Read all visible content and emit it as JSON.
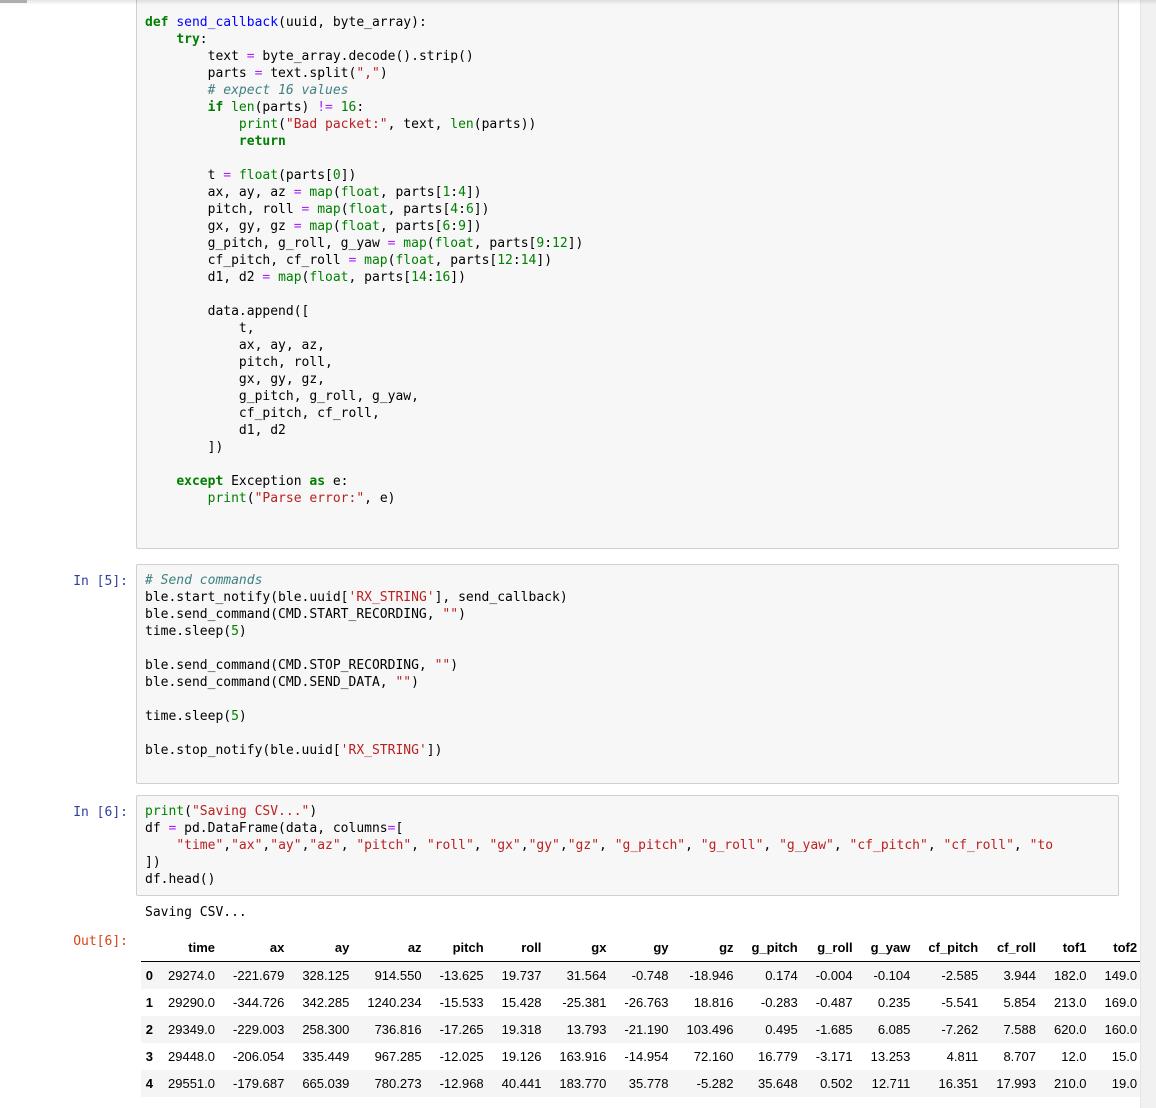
{
  "colors": {
    "in_prompt": "#303f9f",
    "out_prompt": "#d84315",
    "cell_background": "#f7f7f7",
    "cell_border": "#cfcfcf",
    "keyword_green": "#008000",
    "function_blue": "#0000ff",
    "operator_purple": "#aa22ff",
    "string_red": "#ba2121",
    "comment_teal": "#408080",
    "row_stripe": "#f5f5f5"
  },
  "prompts": {
    "in5": "In [5]:",
    "in6": "In [6]:",
    "out6": "Out[6]:"
  },
  "stdout_text": "Saving CSV...",
  "cells": [
    {
      "lines": [
        [
          [
            "k",
            "def"
          ],
          [
            "t",
            " "
          ],
          [
            "f",
            "send_callback"
          ],
          [
            "t",
            "(uuid, byte_array):"
          ]
        ],
        [
          [
            "t",
            "    "
          ],
          [
            "k",
            "try"
          ],
          [
            "t",
            ":"
          ]
        ],
        [
          [
            "t",
            "        text "
          ],
          [
            "o",
            "="
          ],
          [
            "t",
            " byte_array.decode().strip()"
          ]
        ],
        [
          [
            "t",
            "        parts "
          ],
          [
            "o",
            "="
          ],
          [
            "t",
            " text.split("
          ],
          [
            "s",
            "\",\""
          ],
          [
            "t",
            ")"
          ]
        ],
        [
          [
            "t",
            "        "
          ],
          [
            "c",
            "# expect 16 values"
          ]
        ],
        [
          [
            "t",
            "        "
          ],
          [
            "k",
            "if"
          ],
          [
            "t",
            " "
          ],
          [
            "b",
            "len"
          ],
          [
            "t",
            "(parts) "
          ],
          [
            "o",
            "!="
          ],
          [
            "t",
            " "
          ],
          [
            "n",
            "16"
          ],
          [
            "t",
            ":"
          ]
        ],
        [
          [
            "t",
            "            "
          ],
          [
            "b",
            "print"
          ],
          [
            "t",
            "("
          ],
          [
            "s",
            "\"Bad packet:\""
          ],
          [
            "t",
            ", text, "
          ],
          [
            "b",
            "len"
          ],
          [
            "t",
            "(parts))"
          ]
        ],
        [
          [
            "t",
            "            "
          ],
          [
            "k",
            "return"
          ]
        ],
        [],
        [
          [
            "t",
            "        t "
          ],
          [
            "o",
            "="
          ],
          [
            "t",
            " "
          ],
          [
            "b",
            "float"
          ],
          [
            "t",
            "(parts["
          ],
          [
            "n",
            "0"
          ],
          [
            "t",
            "])"
          ]
        ],
        [
          [
            "t",
            "        ax, ay, az "
          ],
          [
            "o",
            "="
          ],
          [
            "t",
            " "
          ],
          [
            "b",
            "map"
          ],
          [
            "t",
            "("
          ],
          [
            "b",
            "float"
          ],
          [
            "t",
            ", parts["
          ],
          [
            "n",
            "1"
          ],
          [
            "t",
            ":"
          ],
          [
            "n",
            "4"
          ],
          [
            "t",
            "])"
          ]
        ],
        [
          [
            "t",
            "        pitch, roll "
          ],
          [
            "o",
            "="
          ],
          [
            "t",
            " "
          ],
          [
            "b",
            "map"
          ],
          [
            "t",
            "("
          ],
          [
            "b",
            "float"
          ],
          [
            "t",
            ", parts["
          ],
          [
            "n",
            "4"
          ],
          [
            "t",
            ":"
          ],
          [
            "n",
            "6"
          ],
          [
            "t",
            "])"
          ]
        ],
        [
          [
            "t",
            "        gx, gy, gz "
          ],
          [
            "o",
            "="
          ],
          [
            "t",
            " "
          ],
          [
            "b",
            "map"
          ],
          [
            "t",
            "("
          ],
          [
            "b",
            "float"
          ],
          [
            "t",
            ", parts["
          ],
          [
            "n",
            "6"
          ],
          [
            "t",
            ":"
          ],
          [
            "n",
            "9"
          ],
          [
            "t",
            "])"
          ]
        ],
        [
          [
            "t",
            "        g_pitch, g_roll, g_yaw "
          ],
          [
            "o",
            "="
          ],
          [
            "t",
            " "
          ],
          [
            "b",
            "map"
          ],
          [
            "t",
            "("
          ],
          [
            "b",
            "float"
          ],
          [
            "t",
            ", parts["
          ],
          [
            "n",
            "9"
          ],
          [
            "t",
            ":"
          ],
          [
            "n",
            "12"
          ],
          [
            "t",
            "])"
          ]
        ],
        [
          [
            "t",
            "        cf_pitch, cf_roll "
          ],
          [
            "o",
            "="
          ],
          [
            "t",
            " "
          ],
          [
            "b",
            "map"
          ],
          [
            "t",
            "("
          ],
          [
            "b",
            "float"
          ],
          [
            "t",
            ", parts["
          ],
          [
            "n",
            "12"
          ],
          [
            "t",
            ":"
          ],
          [
            "n",
            "14"
          ],
          [
            "t",
            "])"
          ]
        ],
        [
          [
            "t",
            "        d1, d2 "
          ],
          [
            "o",
            "="
          ],
          [
            "t",
            " "
          ],
          [
            "b",
            "map"
          ],
          [
            "t",
            "("
          ],
          [
            "b",
            "float"
          ],
          [
            "t",
            ", parts["
          ],
          [
            "n",
            "14"
          ],
          [
            "t",
            ":"
          ],
          [
            "n",
            "16"
          ],
          [
            "t",
            "])"
          ]
        ],
        [],
        [
          [
            "t",
            "        data.append(["
          ]
        ],
        [
          [
            "t",
            "            t,"
          ]
        ],
        [
          [
            "t",
            "            ax, ay, az,"
          ]
        ],
        [
          [
            "t",
            "            pitch, roll,"
          ]
        ],
        [
          [
            "t",
            "            gx, gy, gz,"
          ]
        ],
        [
          [
            "t",
            "            g_pitch, g_roll, g_yaw,"
          ]
        ],
        [
          [
            "t",
            "            cf_pitch, cf_roll,"
          ]
        ],
        [
          [
            "t",
            "            d1, d2"
          ]
        ],
        [
          [
            "t",
            "        ])"
          ]
        ],
        [],
        [
          [
            "t",
            "    "
          ],
          [
            "k",
            "except"
          ],
          [
            "t",
            " Exception "
          ],
          [
            "k",
            "as"
          ],
          [
            "t",
            " e:"
          ]
        ],
        [
          [
            "t",
            "        "
          ],
          [
            "b",
            "print"
          ],
          [
            "t",
            "("
          ],
          [
            "s",
            "\"Parse error:\""
          ],
          [
            "t",
            ", e)"
          ]
        ],
        [],
        []
      ]
    },
    {
      "lines": [
        [
          [
            "c",
            "# Send commands"
          ]
        ],
        [
          [
            "t",
            "ble.start_notify(ble.uuid["
          ],
          [
            "s",
            "'RX_STRING'"
          ],
          [
            "t",
            "], send_callback)"
          ]
        ],
        [
          [
            "t",
            "ble.send_command(CMD.START_RECORDING, "
          ],
          [
            "s",
            "\"\""
          ],
          [
            "t",
            ")"
          ]
        ],
        [
          [
            "t",
            "time.sleep("
          ],
          [
            "n",
            "5"
          ],
          [
            "t",
            ")"
          ]
        ],
        [],
        [
          [
            "t",
            "ble.send_command(CMD.STOP_RECORDING, "
          ],
          [
            "s",
            "\"\""
          ],
          [
            "t",
            ")"
          ]
        ],
        [
          [
            "t",
            "ble.send_command(CMD.SEND_DATA, "
          ],
          [
            "s",
            "\"\""
          ],
          [
            "t",
            ")"
          ]
        ],
        [],
        [
          [
            "t",
            "time.sleep("
          ],
          [
            "n",
            "5"
          ],
          [
            "t",
            ")"
          ]
        ],
        [],
        [
          [
            "t",
            "ble.stop_notify(ble.uuid["
          ],
          [
            "s",
            "'RX_STRING'"
          ],
          [
            "t",
            "])"
          ]
        ],
        []
      ]
    },
    {
      "lines": [
        [
          [
            "b",
            "print"
          ],
          [
            "t",
            "("
          ],
          [
            "s",
            "\"Saving CSV...\""
          ],
          [
            "t",
            ")"
          ]
        ],
        [
          [
            "t",
            "df "
          ],
          [
            "o",
            "="
          ],
          [
            "t",
            " pd.DataFrame(data, columns"
          ],
          [
            "o",
            "="
          ],
          [
            "t",
            "["
          ]
        ],
        [
          [
            "t",
            "    "
          ],
          [
            "s",
            "\"time\""
          ],
          [
            "t",
            ","
          ],
          [
            "s",
            "\"ax\""
          ],
          [
            "t",
            ","
          ],
          [
            "s",
            "\"ay\""
          ],
          [
            "t",
            ","
          ],
          [
            "s",
            "\"az\""
          ],
          [
            "t",
            ", "
          ],
          [
            "s",
            "\"pitch\""
          ],
          [
            "t",
            ", "
          ],
          [
            "s",
            "\"roll\""
          ],
          [
            "t",
            ", "
          ],
          [
            "s",
            "\"gx\""
          ],
          [
            "t",
            ","
          ],
          [
            "s",
            "\"gy\""
          ],
          [
            "t",
            ","
          ],
          [
            "s",
            "\"gz\""
          ],
          [
            "t",
            ", "
          ],
          [
            "s",
            "\"g_pitch\""
          ],
          [
            "t",
            ", "
          ],
          [
            "s",
            "\"g_roll\""
          ],
          [
            "t",
            ", "
          ],
          [
            "s",
            "\"g_yaw\""
          ],
          [
            "t",
            ", "
          ],
          [
            "s",
            "\"cf_pitch\""
          ],
          [
            "t",
            ", "
          ],
          [
            "s",
            "\"cf_roll\""
          ],
          [
            "t",
            ", "
          ],
          [
            "s",
            "\"to"
          ]
        ],
        [
          [
            "t",
            "])"
          ]
        ],
        [
          [
            "t",
            "df.head()"
          ]
        ]
      ]
    }
  ],
  "table": {
    "headers": [
      "time",
      "ax",
      "ay",
      "az",
      "pitch",
      "roll",
      "gx",
      "gy",
      "gz",
      "g_pitch",
      "g_roll",
      "g_yaw",
      "cf_pitch",
      "cf_roll",
      "tof1",
      "tof2"
    ],
    "rows": [
      {
        "index": "0",
        "values": [
          "29274.0",
          "-221.679",
          "328.125",
          "914.550",
          "-13.625",
          "19.737",
          "31.564",
          "-0.748",
          "-18.946",
          "0.174",
          "-0.004",
          "-0.104",
          "-2.585",
          "3.944",
          "182.0",
          "149.0"
        ]
      },
      {
        "index": "1",
        "values": [
          "29290.0",
          "-344.726",
          "342.285",
          "1240.234",
          "-15.533",
          "15.428",
          "-25.381",
          "-26.763",
          "18.816",
          "-0.283",
          "-0.487",
          "0.235",
          "-5.541",
          "5.854",
          "213.0",
          "169.0"
        ]
      },
      {
        "index": "2",
        "values": [
          "29349.0",
          "-229.003",
          "258.300",
          "736.816",
          "-17.265",
          "19.318",
          "13.793",
          "-21.190",
          "103.496",
          "0.495",
          "-1.685",
          "6.085",
          "-7.262",
          "7.588",
          "620.0",
          "160.0"
        ]
      },
      {
        "index": "3",
        "values": [
          "29448.0",
          "-206.054",
          "335.449",
          "967.285",
          "-12.025",
          "19.126",
          "163.916",
          "-14.954",
          "72.160",
          "16.779",
          "-3.171",
          "13.253",
          "4.811",
          "8.707",
          "12.0",
          "15.0"
        ]
      },
      {
        "index": "4",
        "values": [
          "29551.0",
          "-179.687",
          "665.039",
          "780.273",
          "-12.968",
          "40.441",
          "183.770",
          "35.778",
          "-5.282",
          "35.648",
          "0.502",
          "12.711",
          "16.351",
          "17.993",
          "210.0",
          "19.0"
        ]
      }
    ]
  }
}
